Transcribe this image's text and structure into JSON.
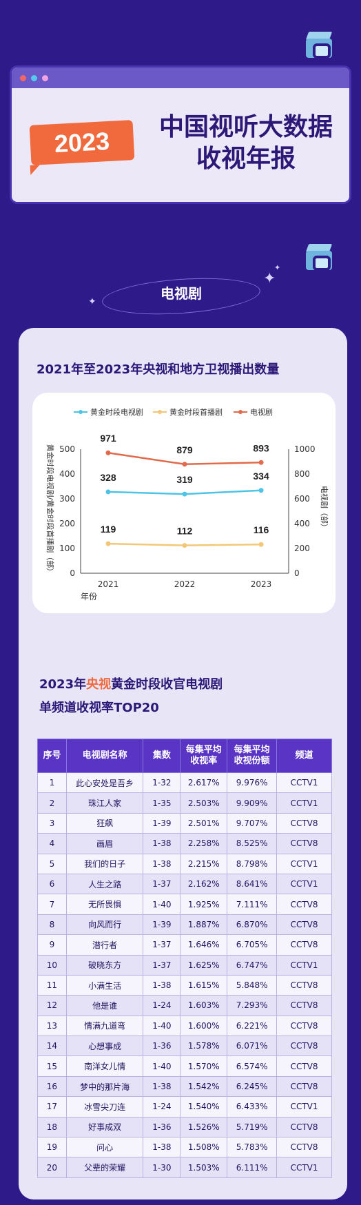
{
  "header": {
    "year_badge": "2023",
    "title_line1": "中国视听大数据",
    "title_line2": "收视年报",
    "dot_colors": [
      "#f06767",
      "#58c7f0",
      "#f0a3e0"
    ]
  },
  "section": {
    "title": "电视剧"
  },
  "chart_heading": "2021年至2023年央视和地方卫视播出数量",
  "chart_data": {
    "type": "line",
    "title": "2021年至2023年央视和地方卫视播出数量",
    "x": [
      "2021",
      "2022",
      "2023"
    ],
    "xlabel": "年份",
    "ylabel_left": "黄金时段电视剧/黄金时段首播剧（部）",
    "ylabel_right": "电视剧（部）",
    "ylim_left": [
      0,
      500
    ],
    "yticks_left": [
      "0",
      "100",
      "200",
      "300",
      "400",
      "500"
    ],
    "ylim_right": [
      0,
      1000
    ],
    "yticks_right": [
      "0",
      "200",
      "400",
      "600",
      "800",
      "1000"
    ],
    "legend_position": "top",
    "series": [
      {
        "name": "黄金时段电视剧",
        "axis": "left",
        "color": "#4dc3e6",
        "values": [
          328,
          319,
          334
        ]
      },
      {
        "name": "黄金时段首播剧",
        "axis": "left",
        "color": "#f3c777",
        "values": [
          119,
          112,
          116
        ]
      },
      {
        "name": "电视剧",
        "axis": "right",
        "color": "#e06a4b",
        "values": [
          971,
          879,
          893
        ]
      }
    ]
  },
  "table": {
    "heading_year": "2023年",
    "heading_highlight": "央视",
    "heading_rest": "黄金时段收官电视剧",
    "heading_line2": "单频道收视率TOP20",
    "columns": [
      "序号",
      "电视剧名称",
      "集数",
      "每集平均\n收视率",
      "每集平均\n收视份额",
      "频道"
    ],
    "rows": [
      [
        "1",
        "此心安处是吾乡",
        "1-32",
        "2.617%",
        "9.976%",
        "CCTV1"
      ],
      [
        "2",
        "珠江人家",
        "1-35",
        "2.503%",
        "9.909%",
        "CCTV1"
      ],
      [
        "3",
        "狂飙",
        "1-39",
        "2.501%",
        "9.707%",
        "CCTV8"
      ],
      [
        "4",
        "画眉",
        "1-38",
        "2.258%",
        "8.525%",
        "CCTV8"
      ],
      [
        "5",
        "我们的日子",
        "1-38",
        "2.215%",
        "8.798%",
        "CCTV1"
      ],
      [
        "6",
        "人生之路",
        "1-37",
        "2.162%",
        "8.641%",
        "CCTV1"
      ],
      [
        "7",
        "无所畏惧",
        "1-40",
        "1.925%",
        "7.111%",
        "CCTV8"
      ],
      [
        "8",
        "向风而行",
        "1-39",
        "1.887%",
        "6.870%",
        "CCTV8"
      ],
      [
        "9",
        "潜行者",
        "1-37",
        "1.646%",
        "6.705%",
        "CCTV8"
      ],
      [
        "10",
        "破晓东方",
        "1-37",
        "1.625%",
        "6.747%",
        "CCTV1"
      ],
      [
        "11",
        "小满生活",
        "1-38",
        "1.615%",
        "5.848%",
        "CCTV8"
      ],
      [
        "12",
        "他是谁",
        "1-24",
        "1.603%",
        "7.293%",
        "CCTV8"
      ],
      [
        "13",
        "情满九道弯",
        "1-40",
        "1.600%",
        "6.221%",
        "CCTV8"
      ],
      [
        "14",
        "心想事成",
        "1-36",
        "1.578%",
        "6.071%",
        "CCTV8"
      ],
      [
        "15",
        "南洋女儿情",
        "1-40",
        "1.570%",
        "6.574%",
        "CCTV8"
      ],
      [
        "16",
        "梦中的那片海",
        "1-38",
        "1.542%",
        "6.245%",
        "CCTV8"
      ],
      [
        "17",
        "冰雪尖刀连",
        "1-24",
        "1.540%",
        "6.433%",
        "CCTV1"
      ],
      [
        "18",
        "好事成双",
        "1-36",
        "1.526%",
        "5.719%",
        "CCTV8"
      ],
      [
        "19",
        "问心",
        "1-38",
        "1.508%",
        "5.783%",
        "CCTV8"
      ],
      [
        "20",
        "父辈的荣耀",
        "1-30",
        "1.503%",
        "6.111%",
        "CCTV1"
      ]
    ]
  }
}
